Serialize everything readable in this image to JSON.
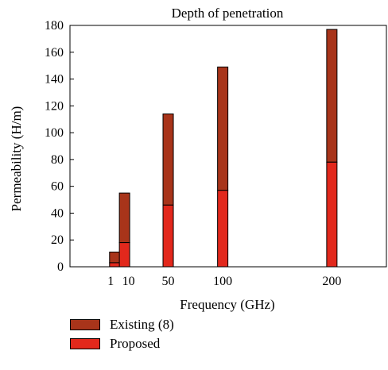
{
  "colors": {
    "existing": "#a8341a",
    "proposed": "#e2281c"
  },
  "chart_data": {
    "type": "bar",
    "stacked": true,
    "title": "Depth of penetration",
    "xlabel": "Frequency (GHz)",
    "ylabel": "Permeability (H/m)",
    "x": [
      1,
      10,
      50,
      100,
      200
    ],
    "xticks": [
      "1",
      "10",
      "50",
      "100",
      "200"
    ],
    "xlim": [
      -40,
      250
    ],
    "ylim": [
      0,
      180
    ],
    "yticks": [
      0,
      20,
      40,
      60,
      80,
      100,
      120,
      140,
      160,
      180
    ],
    "series": [
      {
        "name": "Proposed",
        "values": [
          3,
          18,
          46,
          57,
          78
        ]
      },
      {
        "name": "Existing (8)",
        "values": [
          8,
          37,
          68,
          92,
          99
        ]
      }
    ],
    "totals": [
      11,
      55,
      114,
      149,
      177
    ],
    "legend_position": "bottom-left",
    "grid": false
  },
  "legend": {
    "items": [
      {
        "label": "Existing (8)",
        "series": "existing"
      },
      {
        "label": "Proposed",
        "series": "proposed"
      }
    ]
  }
}
